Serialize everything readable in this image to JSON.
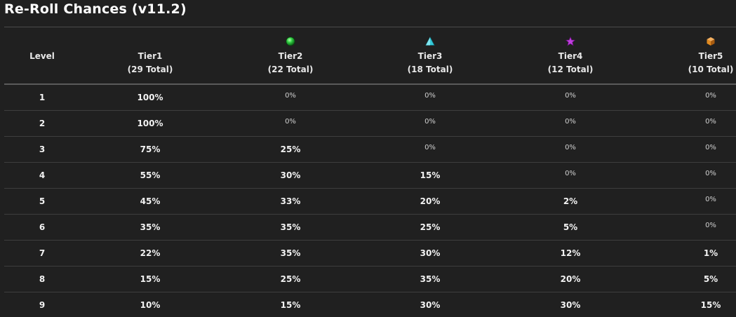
{
  "title": "Re-Roll Chances (v11.2)",
  "columns": [
    {
      "name": "Level",
      "total": ""
    },
    {
      "name": "Tier1",
      "total": "(29 Total)"
    },
    {
      "name": "Tier2",
      "total": "(22 Total)",
      "icon": "green-orb-icon",
      "color": "#2ecc40"
    },
    {
      "name": "Tier3",
      "total": "(18 Total)",
      "icon": "cyan-pyramid-icon",
      "color": "#36c8d8"
    },
    {
      "name": "Tier4",
      "total": "(12 Total)",
      "icon": "purple-star-icon",
      "color": "#c040e0"
    },
    {
      "name": "Tier5",
      "total": "(10 Total)",
      "icon": "orange-cube-icon",
      "color": "#e08a20"
    }
  ],
  "rows": [
    [
      "1",
      "100%",
      "0%",
      "0%",
      "0%",
      "0%"
    ],
    [
      "2",
      "100%",
      "0%",
      "0%",
      "0%",
      "0%"
    ],
    [
      "3",
      "75%",
      "25%",
      "0%",
      "0%",
      "0%"
    ],
    [
      "4",
      "55%",
      "30%",
      "15%",
      "0%",
      "0%"
    ],
    [
      "5",
      "45%",
      "33%",
      "20%",
      "2%",
      "0%"
    ],
    [
      "6",
      "35%",
      "35%",
      "25%",
      "5%",
      "0%"
    ],
    [
      "7",
      "22%",
      "35%",
      "30%",
      "12%",
      "1%"
    ],
    [
      "8",
      "15%",
      "25%",
      "35%",
      "20%",
      "5%"
    ],
    [
      "9",
      "10%",
      "15%",
      "30%",
      "30%",
      "15%"
    ]
  ]
}
